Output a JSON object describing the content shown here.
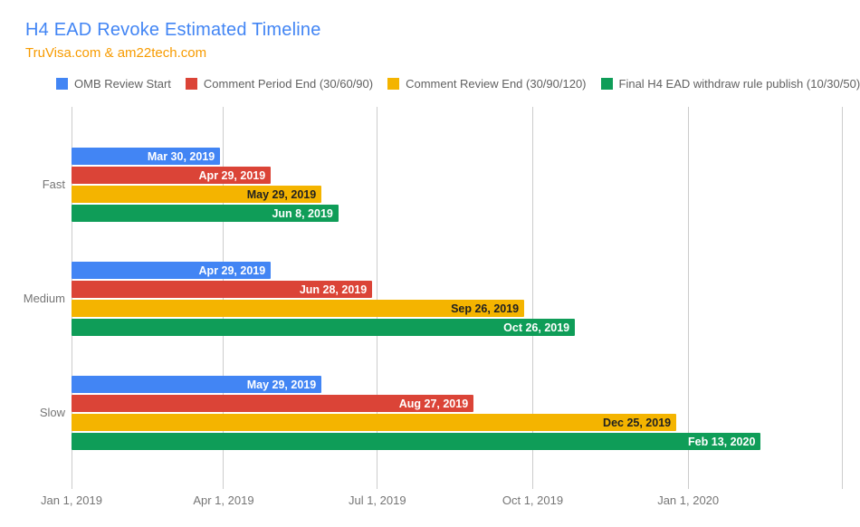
{
  "header": {
    "title": "H4 EAD Revoke Estimated Timeline",
    "subtitle": "TruVisa.com & am22tech.com",
    "title_color": "#4285F4",
    "subtitle_color": "#F79B00"
  },
  "chart_data": {
    "type": "bar",
    "orientation": "horizontal",
    "title": "H4 EAD Revoke Estimated Timeline",
    "subtitle": "TruVisa.com & am22tech.com",
    "legend_position": "top",
    "grid": true,
    "gridline_color": "#cccccc",
    "categories": [
      "Fast",
      "Medium",
      "Slow"
    ],
    "series": [
      {
        "name": "OMB Review Start",
        "color": "#4285F4",
        "label_color": "#ffffff",
        "values": [
          "Mar 30, 2019",
          "Apr 29, 2019",
          "May 29, 2019"
        ]
      },
      {
        "name": "Comment Period End (30/60/90)",
        "color": "#DB4437",
        "label_color": "#ffffff",
        "values": [
          "Apr 29, 2019",
          "Jun 28, 2019",
          "Aug 27, 2019"
        ]
      },
      {
        "name": "Comment Review End (30/90/120)",
        "color": "#F4B400",
        "label_color": "#212121",
        "values": [
          "May 29, 2019",
          "Sep 26, 2019",
          "Dec 25, 2019"
        ]
      },
      {
        "name": "Final H4 EAD withdraw rule publish (10/30/50)",
        "color": "#0F9D58",
        "label_color": "#ffffff",
        "values": [
          "Jun 8, 2019",
          "Oct 26, 2019",
          "Feb 13, 2020"
        ]
      }
    ],
    "x_axis": {
      "start": "Jan 1, 2019",
      "end": "Apr 1, 2020",
      "ticks": [
        "Jan 1, 2019",
        "Apr 1, 2019",
        "Jul 1, 2019",
        "Oct 1, 2019",
        "Jan 1, 2020"
      ],
      "tick_color": "#757575"
    }
  }
}
